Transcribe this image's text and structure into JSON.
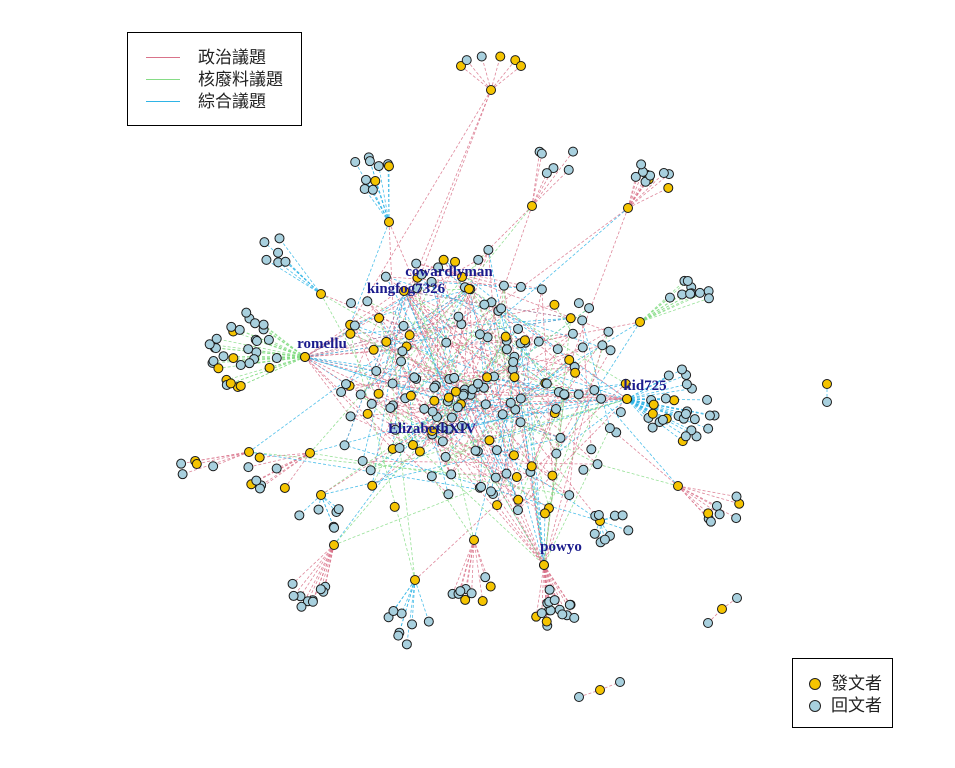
{
  "colors": {
    "politics": "#d9738a",
    "nuclear": "#86dc86",
    "general": "#2fb4e6",
    "poster": "#f5c400",
    "replier": "#a8d0de",
    "hub_label": "#1a1a8c"
  },
  "edge_legend": {
    "items": [
      {
        "key": "politics",
        "label": "政治議題"
      },
      {
        "key": "nuclear",
        "label": "核廢料議題"
      },
      {
        "key": "general",
        "label": "綜合議題"
      }
    ]
  },
  "node_legend": {
    "items": [
      {
        "key": "poster",
        "label": "發文者"
      },
      {
        "key": "replier",
        "label": "回文者"
      }
    ]
  },
  "hubs": [
    {
      "id": "cowardlyman",
      "label": "cowardlyman"
    },
    {
      "id": "kingfog7326",
      "label": "kingfog7326"
    },
    {
      "id": "romellu",
      "label": "romellu"
    },
    {
      "id": "kid725",
      "label": "kid725"
    },
    {
      "id": "ElizabethXIV",
      "label": "ElizabethXIV"
    },
    {
      "id": "powyo",
      "label": "powyo"
    }
  ]
}
